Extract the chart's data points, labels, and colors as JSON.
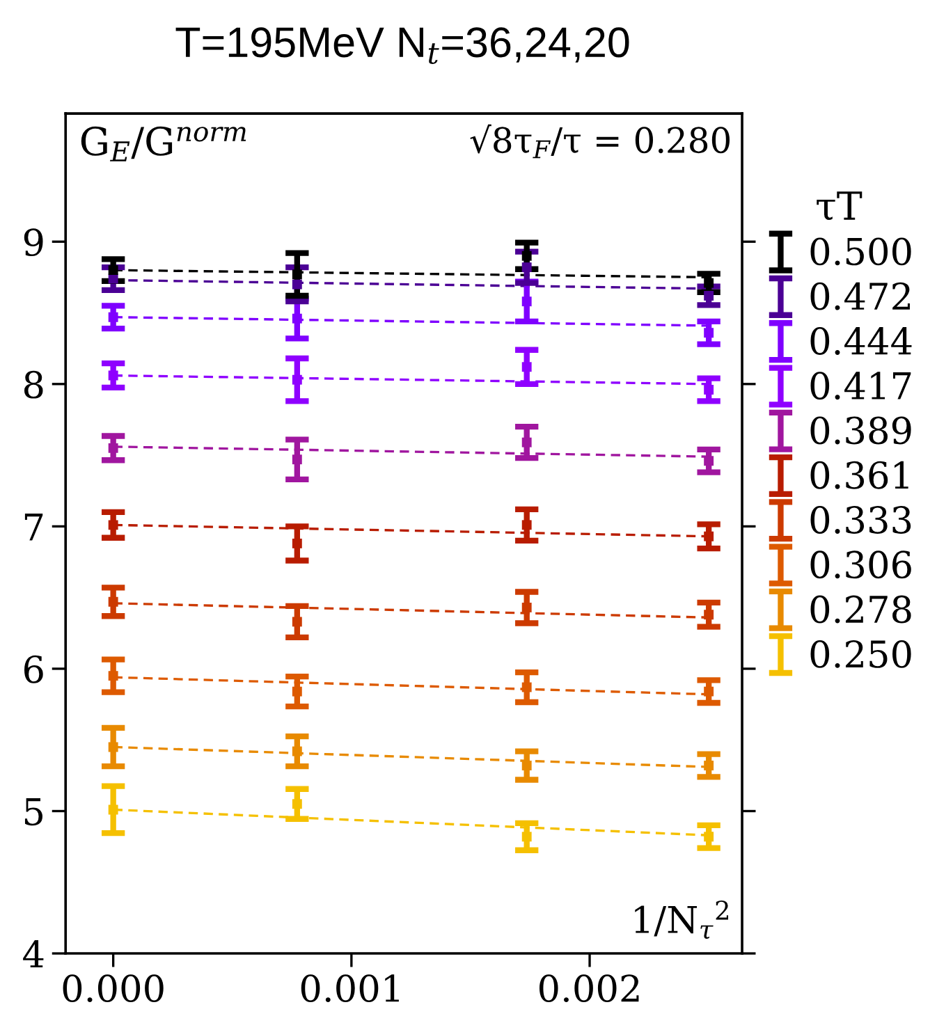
{
  "chart_data": {
    "type": "scatter",
    "title": "T=195MeV N$_{t}$=36,24,20",
    "ylabel": "G$_{E}$/G$^{norm}$",
    "xlabel": "1/N$_{τ}$$^{2}$",
    "legend_title": "τT",
    "annotations": [
      "√8τ$_{F}$/τ = 0.280"
    ],
    "xlim": [
      -0.0002,
      0.00264
    ],
    "xticks": [
      {
        "value": 0,
        "label": "0.000"
      },
      0.001,
      0.002
    ],
    "ylim": [
      4,
      9.9
    ],
    "yticks": [
      4,
      5,
      6,
      7,
      8,
      9
    ],
    "grid": false,
    "legend": "right",
    "marker": "square",
    "series": [
      {
        "name": "0.500",
        "color": "#000000",
        "x": [
          0,
          0.000772,
          0.001736,
          0.0025
        ],
        "values": [
          8.8,
          8.77,
          8.9,
          8.71
        ],
        "errors": [
          0.077,
          0.15,
          0.093,
          0.065
        ]
      },
      {
        "name": "0.472",
        "color": "#4b0095",
        "x": [
          0,
          0.000772,
          0.001736,
          0.0025
        ],
        "values": [
          8.74,
          8.7,
          8.82,
          8.62
        ],
        "errors": [
          0.08,
          0.12,
          0.11,
          0.065
        ]
      },
      {
        "name": "0.444",
        "color": "#7f00ff",
        "x": [
          0,
          0.000772,
          0.001736,
          0.0025
        ],
        "values": [
          8.47,
          8.46,
          8.58,
          8.36
        ],
        "errors": [
          0.08,
          0.14,
          0.14,
          0.08
        ]
      },
      {
        "name": "0.417",
        "color": "#8f00ff",
        "x": [
          0,
          0.000772,
          0.001736,
          0.0025
        ],
        "values": [
          8.06,
          8.03,
          8.12,
          7.96
        ],
        "errors": [
          0.085,
          0.15,
          0.12,
          0.08
        ]
      },
      {
        "name": "0.389",
        "color": "#a0169f",
        "x": [
          0,
          0.000772,
          0.001736,
          0.0025
        ],
        "values": [
          7.55,
          7.47,
          7.59,
          7.46
        ],
        "errors": [
          0.085,
          0.14,
          0.11,
          0.08
        ]
      },
      {
        "name": "0.361",
        "color": "#b81c00",
        "x": [
          0,
          0.000772,
          0.001736,
          0.0025
        ],
        "values": [
          7.01,
          6.88,
          7.01,
          6.93
        ],
        "errors": [
          0.09,
          0.12,
          0.11,
          0.085
        ]
      },
      {
        "name": "0.333",
        "color": "#cc3a00",
        "x": [
          0,
          0.000772,
          0.001736,
          0.0025
        ],
        "values": [
          6.47,
          6.33,
          6.43,
          6.38
        ],
        "errors": [
          0.1,
          0.11,
          0.11,
          0.085
        ]
      },
      {
        "name": "0.306",
        "color": "#dd5a00",
        "x": [
          0,
          0.000772,
          0.001736,
          0.0025
        ],
        "values": [
          5.95,
          5.84,
          5.87,
          5.84
        ],
        "errors": [
          0.115,
          0.105,
          0.105,
          0.08
        ]
      },
      {
        "name": "0.278",
        "color": "#e88a00",
        "x": [
          0,
          0.000772,
          0.001736,
          0.0025
        ],
        "values": [
          5.45,
          5.42,
          5.32,
          5.32
        ],
        "errors": [
          0.135,
          0.105,
          0.1,
          0.08
        ]
      },
      {
        "name": "0.250",
        "color": "#f5c000",
        "x": [
          0,
          0.000772,
          0.001736,
          0.0025
        ],
        "values": [
          5.01,
          5.05,
          4.82,
          4.82
        ],
        "errors": [
          0.165,
          0.105,
          0.095,
          0.08
        ]
      },
      {
        "type": "line",
        "marker": "none",
        "line_style": "dashed",
        "color": "#000000",
        "x": [
          0,
          0.0025
        ],
        "values": [
          8.8,
          8.75
        ]
      },
      {
        "type": "line",
        "marker": "none",
        "line_style": "dashed",
        "color": "#4b0095",
        "x": [
          0,
          0.0025
        ],
        "values": [
          8.73,
          8.67
        ]
      },
      {
        "type": "line",
        "marker": "none",
        "line_style": "dashed",
        "color": "#7f00ff",
        "x": [
          0,
          0.0025
        ],
        "values": [
          8.47,
          8.41
        ]
      },
      {
        "type": "line",
        "marker": "none",
        "line_style": "dashed",
        "color": "#8f00ff",
        "x": [
          0,
          0.0025
        ],
        "values": [
          8.06,
          8.0
        ]
      },
      {
        "type": "line",
        "marker": "none",
        "line_style": "dashed",
        "color": "#a0169f",
        "x": [
          0,
          0.0025
        ],
        "values": [
          7.56,
          7.49
        ]
      },
      {
        "type": "line",
        "marker": "none",
        "line_style": "dashed",
        "color": "#b81c00",
        "x": [
          0,
          0.0025
        ],
        "values": [
          7.01,
          6.93
        ]
      },
      {
        "type": "line",
        "marker": "none",
        "line_style": "dashed",
        "color": "#cc3a00",
        "x": [
          0,
          0.0025
        ],
        "values": [
          6.46,
          6.36
        ]
      },
      {
        "type": "line",
        "marker": "none",
        "line_style": "dashed",
        "color": "#dd5a00",
        "x": [
          0,
          0.0025
        ],
        "values": [
          5.94,
          5.82
        ]
      },
      {
        "type": "line",
        "marker": "none",
        "line_style": "dashed",
        "color": "#e88a00",
        "x": [
          0,
          0.0025
        ],
        "values": [
          5.45,
          5.31
        ]
      },
      {
        "type": "line",
        "marker": "none",
        "line_style": "dashed",
        "color": "#f5c000",
        "x": [
          0,
          0.0025
        ],
        "values": [
          5.01,
          4.83
        ]
      }
    ]
  }
}
